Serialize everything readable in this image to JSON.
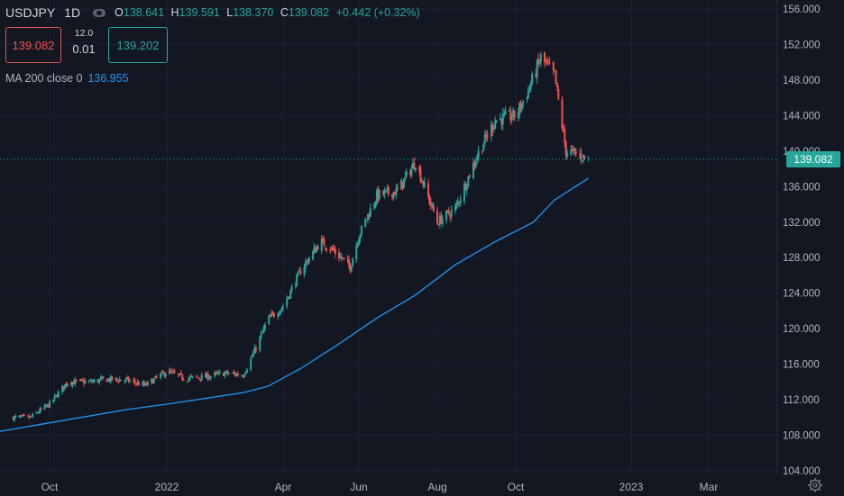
{
  "legend": {
    "symbol": "USDJPY",
    "interval": "1D",
    "open_key": "O",
    "open": "138.641",
    "high_key": "H",
    "high": "139.591",
    "low_key": "L",
    "low": "138.370",
    "close_key": "C",
    "close": "139.082",
    "change": "+0.442 (+0.32%)"
  },
  "trade": {
    "sell_price": "139.082",
    "buy_price": "139.202",
    "lot": "12.0",
    "spread": "0.01"
  },
  "ma": {
    "label": "MA 200 close 0",
    "value": "136.955",
    "color": "#2196f3"
  },
  "last_price_tag": "139.082",
  "colors": {
    "background": "#131722",
    "up": "#26a69a",
    "down": "#ef5350",
    "grid": "#1e222d"
  },
  "icons": {
    "eye": "eye-icon",
    "settings": "gear-icon"
  },
  "chart_data": {
    "type": "candlestick",
    "y_ticks": [
      "156.000",
      "152.000",
      "148.000",
      "144.000",
      "140.000",
      "136.000",
      "132.000",
      "128.000",
      "124.000",
      "120.000",
      "116.000",
      "112.000",
      "108.000",
      "104.000"
    ],
    "x_ticks": [
      "Oct",
      "2022",
      "Apr",
      "Jun",
      "Aug",
      "Oct",
      "2023",
      "Mar"
    ],
    "ylim": [
      104,
      156
    ],
    "grid": true,
    "price_series": {
      "x": [
        "2021-09-01",
        "2021-09-15",
        "2021-10-01",
        "2021-10-15",
        "2021-11-01",
        "2021-11-15",
        "2021-12-01",
        "2021-12-15",
        "2022-01-01",
        "2022-01-15",
        "2022-02-01",
        "2022-02-15",
        "2022-03-01",
        "2022-03-10",
        "2022-03-20",
        "2022-04-01",
        "2022-04-15",
        "2022-05-01",
        "2022-05-10",
        "2022-05-25",
        "2022-06-01",
        "2022-06-15",
        "2022-07-01",
        "2022-07-15",
        "2022-08-01",
        "2022-08-15",
        "2022-09-01",
        "2022-09-15",
        "2022-10-01",
        "2022-10-10",
        "2022-10-21",
        "2022-11-01",
        "2022-11-10",
        "2022-11-20",
        "2022-11-28"
      ],
      "close": [
        110.0,
        110.0,
        111.5,
        114.0,
        114.0,
        114.3,
        114.2,
        113.6,
        115.2,
        114.4,
        114.6,
        115.0,
        114.8,
        117.5,
        121.0,
        122.5,
        126.5,
        129.8,
        129.0,
        127.0,
        130.5,
        135.0,
        135.5,
        138.8,
        132.0,
        133.5,
        139.5,
        143.5,
        144.0,
        146.5,
        150.5,
        148.5,
        140.0,
        139.6,
        139.08
      ]
    },
    "ma_series": {
      "name": "MA 200 close 0",
      "x": [
        "2021-08-15",
        "2021-10-01",
        "2021-12-01",
        "2022-01-01",
        "2022-03-01",
        "2022-03-20",
        "2022-04-15",
        "2022-05-15",
        "2022-06-15",
        "2022-07-15",
        "2022-08-15",
        "2022-09-15",
        "2022-10-15",
        "2022-11-01",
        "2022-11-28"
      ],
      "values": [
        108.3,
        109.4,
        110.9,
        111.5,
        112.8,
        113.5,
        115.5,
        118.2,
        121.2,
        123.8,
        127.2,
        129.8,
        132.0,
        134.5,
        136.955
      ]
    }
  }
}
